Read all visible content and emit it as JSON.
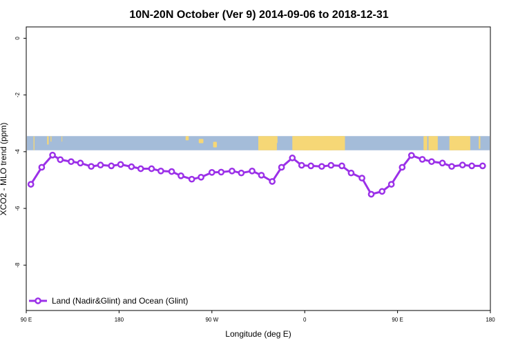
{
  "chart_data": {
    "type": "line",
    "title": "10N-20N October (Ver 9)   2014-09-06 to 2018-12-31",
    "xlabel": "Longitude (deg E)",
    "ylabel": "XCO2 - MLO trend (ppm)",
    "xlim": [
      90,
      390
    ],
    "ylim": [
      -9.6,
      0.4
    ],
    "x_ticks": [
      {
        "value": 90,
        "label": "90 E"
      },
      {
        "value": 150,
        "label": "180"
      },
      {
        "value": 210,
        "label": "90 W"
      },
      {
        "value": 270,
        "label": "0"
      },
      {
        "value": 330,
        "label": "90 E"
      },
      {
        "value": 390,
        "label": "180"
      }
    ],
    "y_ticks": [
      {
        "value": 0,
        "label": "0"
      },
      {
        "value": -2,
        "label": "-2"
      },
      {
        "value": -4,
        "label": "-4"
      },
      {
        "value": -6,
        "label": "-6"
      },
      {
        "value": -8,
        "label": "-8"
      }
    ],
    "grid": false,
    "legend_position": "bottom-left",
    "colors": {
      "series": "#9b30e8",
      "ocean": "#a4bcd9",
      "land": "#f6d776"
    },
    "map_strip": {
      "lat_range": "10N-20N",
      "y_top": -3.45,
      "y_bottom": -3.95
    },
    "series": [
      {
        "name": "Land (Nadir&Glint) and Ocean (Glint)",
        "x": [
          93,
          100,
          107,
          112,
          119,
          125,
          132,
          138,
          145,
          151,
          158,
          164,
          171,
          177,
          184,
          190,
          197,
          203,
          210,
          216,
          223,
          229,
          236,
          242,
          249,
          255,
          262,
          268,
          274,
          281,
          287,
          294,
          300,
          307,
          313,
          320,
          326,
          333,
          339,
          346,
          352,
          359,
          365,
          372,
          378,
          385
        ],
        "y": [
          -5.15,
          -4.55,
          -4.12,
          -4.28,
          -4.35,
          -4.4,
          -4.52,
          -4.47,
          -4.5,
          -4.45,
          -4.53,
          -4.6,
          -4.6,
          -4.68,
          -4.7,
          -4.85,
          -4.97,
          -4.9,
          -4.73,
          -4.72,
          -4.68,
          -4.75,
          -4.68,
          -4.83,
          -5.05,
          -4.55,
          -4.22,
          -4.48,
          -4.5,
          -4.52,
          -4.48,
          -4.5,
          -4.75,
          -4.93,
          -5.5,
          -5.4,
          -5.15,
          -4.55,
          -4.13,
          -4.27,
          -4.35,
          -4.4,
          -4.52,
          -4.47,
          -4.5,
          -4.5
        ]
      }
    ]
  }
}
